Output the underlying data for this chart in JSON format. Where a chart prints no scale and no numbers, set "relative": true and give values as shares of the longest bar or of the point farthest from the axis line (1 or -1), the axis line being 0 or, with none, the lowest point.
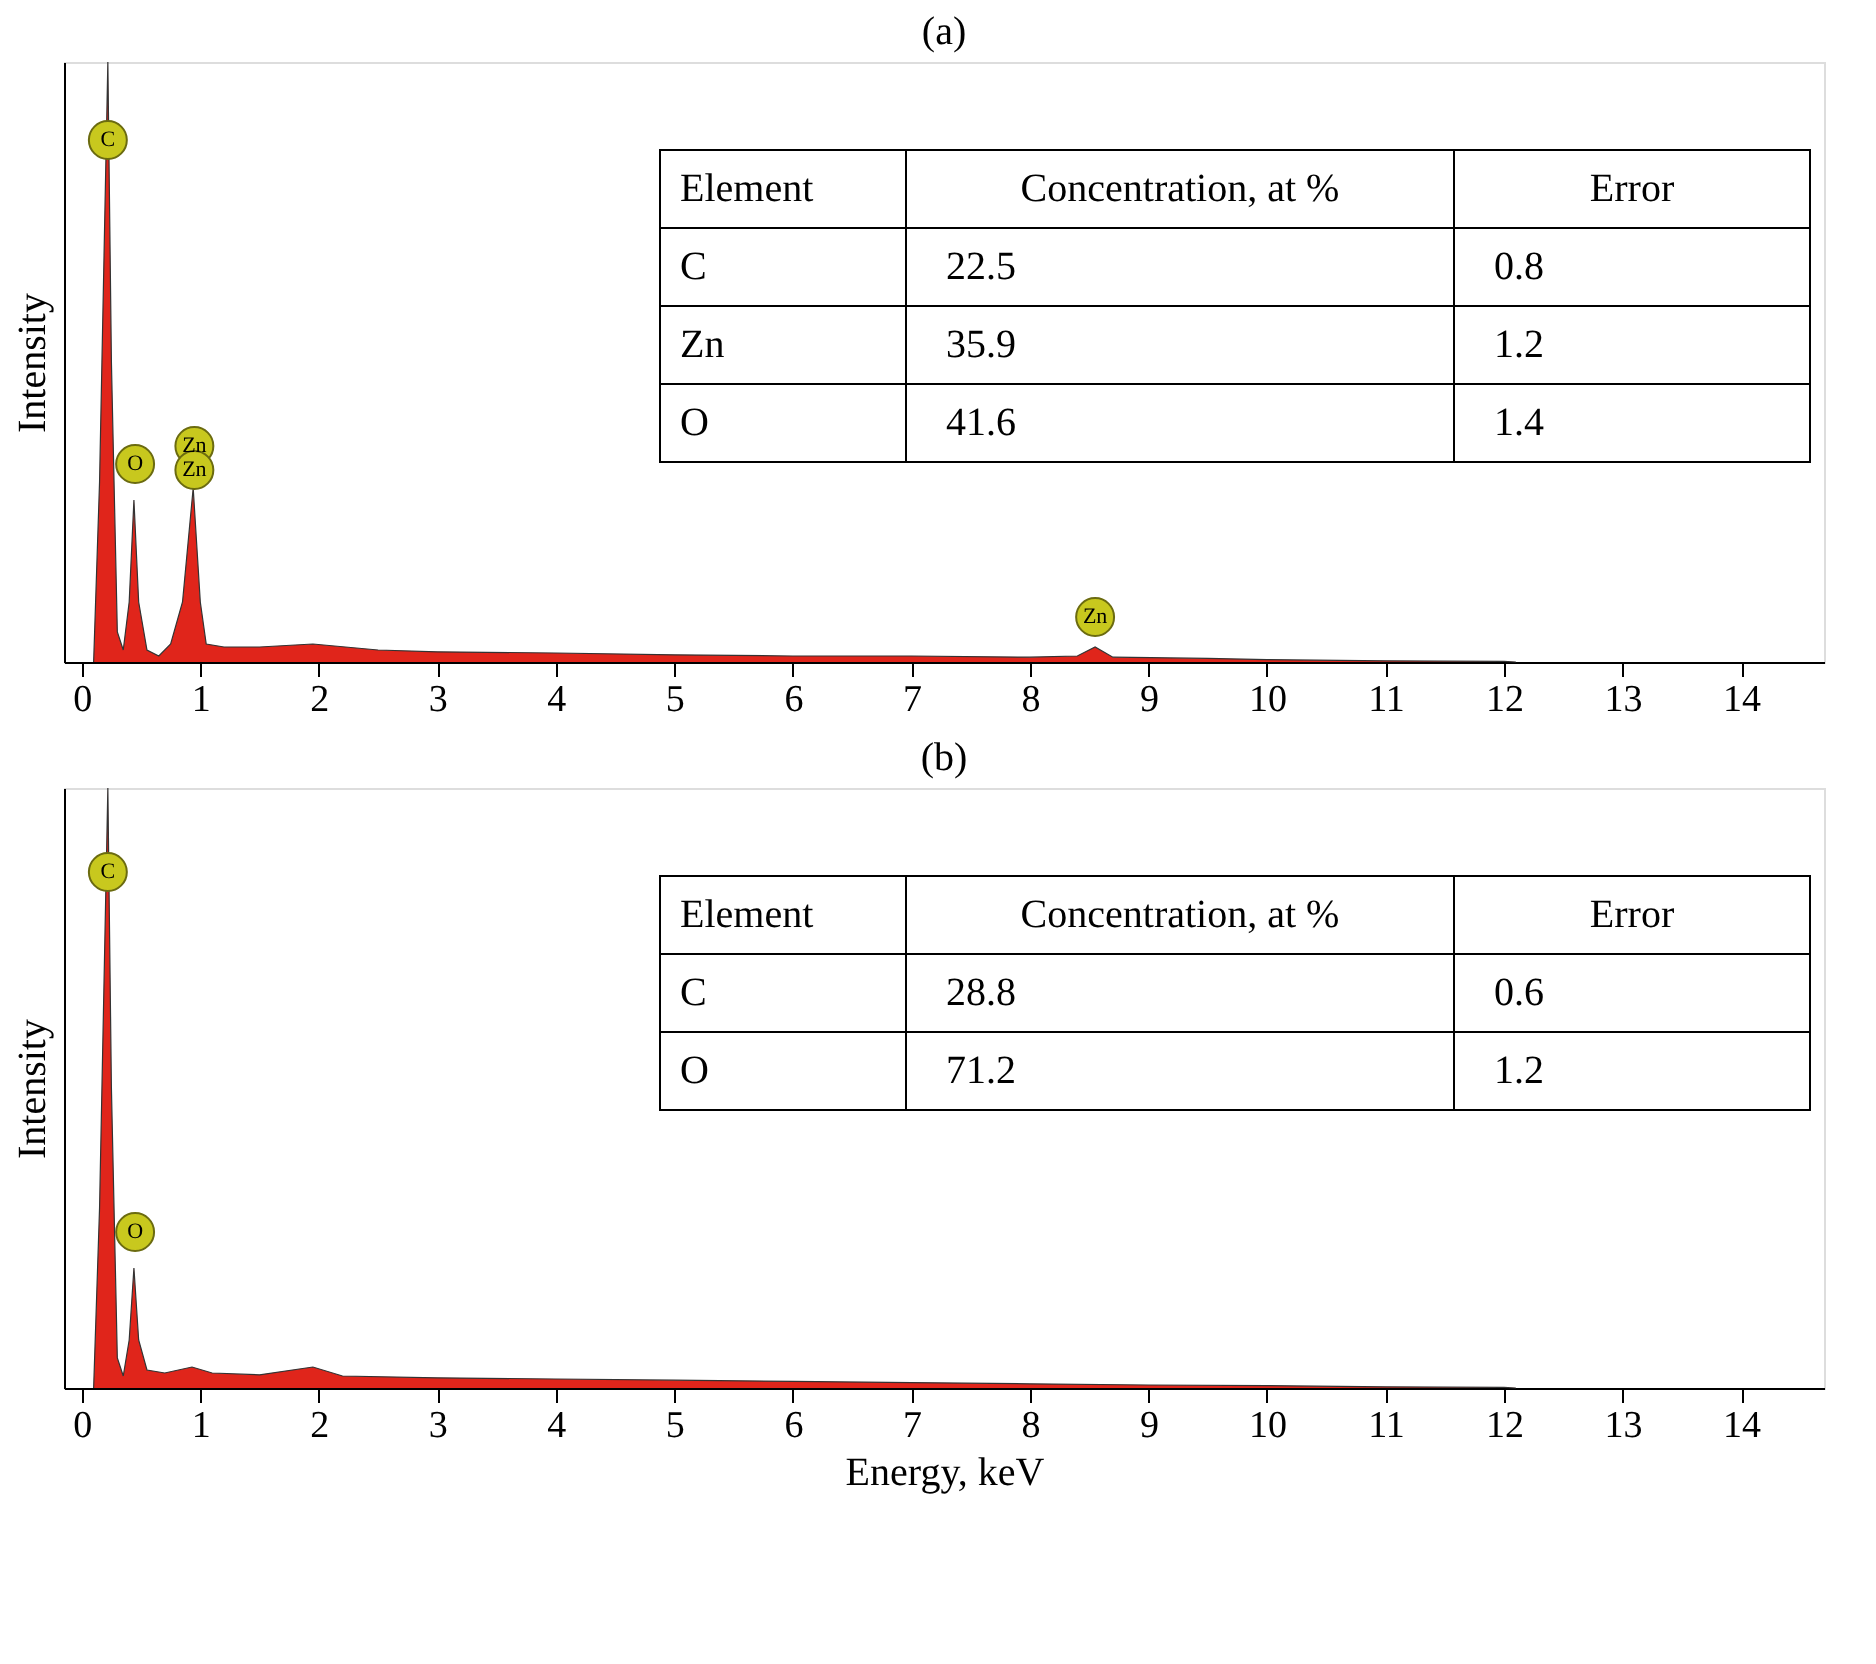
{
  "chart_data": [
    {
      "type": "area",
      "title": "(a)",
      "ylabel": "Intensity",
      "relative": true,
      "xlim": [
        -0.15,
        14.7
      ],
      "xticks": [
        0,
        1,
        2,
        3,
        4,
        5,
        6,
        7,
        8,
        9,
        10,
        11,
        12,
        13,
        14
      ],
      "grid": false,
      "series": [
        {
          "color": "#e0251b",
          "x": [
            0.1,
            0.15,
            0.17,
            0.22,
            0.25,
            0.3,
            0.35,
            0.4,
            0.44,
            0.48,
            0.55,
            0.65,
            0.75,
            0.85,
            0.94,
            1.0,
            1.05,
            1.2,
            1.5,
            1.95,
            2.5,
            3,
            4,
            5,
            6,
            7,
            8,
            8.4,
            8.55,
            8.7,
            9.5,
            10,
            11,
            12,
            12.1
          ],
          "values": [
            0,
            0.3,
            0.5,
            1,
            0.5,
            0.05,
            0.02,
            0.1,
            0.27,
            0.1,
            0.02,
            0.01,
            0.03,
            0.1,
            0.29,
            0.1,
            0.03,
            0.025,
            0.025,
            0.03,
            0.02,
            0.017,
            0.015,
            0.012,
            0.01,
            0.01,
            0.008,
            0.01,
            0.025,
            0.008,
            0.006,
            0.004,
            0.002,
            0.001,
            0
          ]
        }
      ],
      "annotations": [
        {
          "text": "C",
          "x": 0.22,
          "y": 0.87
        },
        {
          "text": "O",
          "x": 0.45,
          "y": 0.33
        },
        {
          "text": "Zn",
          "x": 0.95,
          "y": 0.36
        },
        {
          "text": "Zn",
          "x": 0.95,
          "y": 0.32
        },
        {
          "text": "Zn",
          "x": 8.55,
          "y": 0.075
        },
        "Element",
        "Concentration, at  %",
        "Error",
        "C",
        "22.5",
        "0.8",
        "Zn",
        "35.9",
        "1.2",
        "O",
        "41.6",
        "1.4"
      ]
    },
    {
      "type": "area",
      "title": "(b)",
      "xlabel": "Energy, keV",
      "ylabel": "Intensity",
      "relative": true,
      "xlim": [
        -0.15,
        14.7
      ],
      "xticks": [
        0,
        1,
        2,
        3,
        4,
        5,
        6,
        7,
        8,
        9,
        10,
        11,
        12,
        13,
        14
      ],
      "grid": false,
      "series": [
        {
          "color": "#e0251b",
          "x": [
            0.1,
            0.15,
            0.17,
            0.22,
            0.25,
            0.3,
            0.35,
            0.4,
            0.44,
            0.48,
            0.55,
            0.7,
            0.93,
            1.1,
            1.5,
            1.95,
            2.2,
            3,
            4,
            5,
            6,
            7,
            8,
            9,
            10,
            11,
            12,
            12.1
          ],
          "values": [
            0,
            0.3,
            0.5,
            1,
            0.5,
            0.05,
            0.02,
            0.08,
            0.2,
            0.08,
            0.03,
            0.025,
            0.035,
            0.025,
            0.022,
            0.035,
            0.02,
            0.017,
            0.015,
            0.013,
            0.011,
            0.009,
            0.007,
            0.005,
            0.004,
            0.002,
            0.001,
            0
          ]
        }
      ],
      "annotations": [
        {
          "text": "C",
          "x": 0.22,
          "y": 0.86
        },
        {
          "text": "O",
          "x": 0.45,
          "y": 0.26
        },
        "Element",
        "Concentration, at  %",
        "Error",
        "C",
        "28.8",
        "0.6",
        "O",
        "71.2",
        "1.2"
      ]
    }
  ]
}
